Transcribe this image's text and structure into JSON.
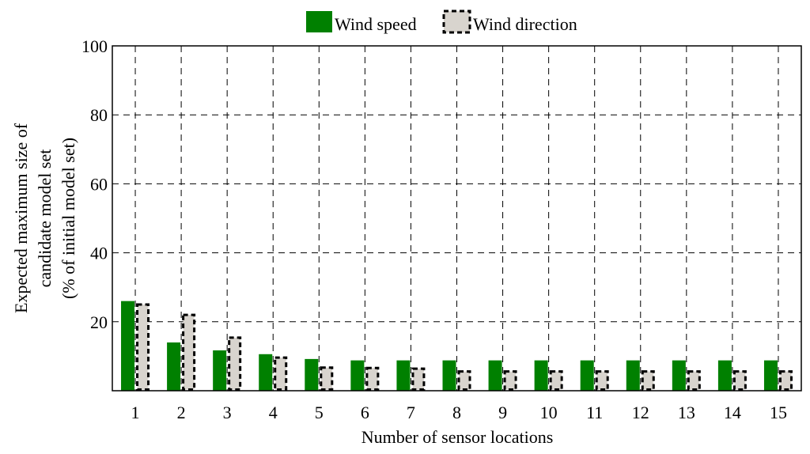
{
  "chart_data": {
    "type": "bar",
    "categories": [
      "1",
      "2",
      "3",
      "4",
      "5",
      "6",
      "7",
      "8",
      "9",
      "10",
      "11",
      "12",
      "13",
      "14",
      "15"
    ],
    "series": [
      {
        "name": "Wind speed",
        "values": [
          26,
          14,
          11.7,
          10.6,
          9.2,
          8.8,
          8.8,
          8.8,
          8.8,
          8.8,
          8.8,
          8.8,
          8.8,
          8.8,
          8.8
        ],
        "color": "#008000",
        "style": "solid"
      },
      {
        "name": "Wind direction",
        "values": [
          25,
          22,
          15.4,
          9.6,
          6.7,
          6.6,
          6.4,
          5.6,
          5.6,
          5.6,
          5.6,
          5.6,
          5.6,
          5.6,
          5.6
        ],
        "color": "#d8d4ce",
        "style": "dashed"
      }
    ],
    "xlabel": "Number of sensor locations",
    "ylabel_lines": [
      "Expected maximum size of",
      "candidate model set",
      "(% of initial model set)"
    ],
    "ylim": [
      0,
      100
    ],
    "yticks": [
      "20",
      "40",
      "60",
      "80",
      "100"
    ],
    "grid": true,
    "legend_position": "top-center"
  }
}
